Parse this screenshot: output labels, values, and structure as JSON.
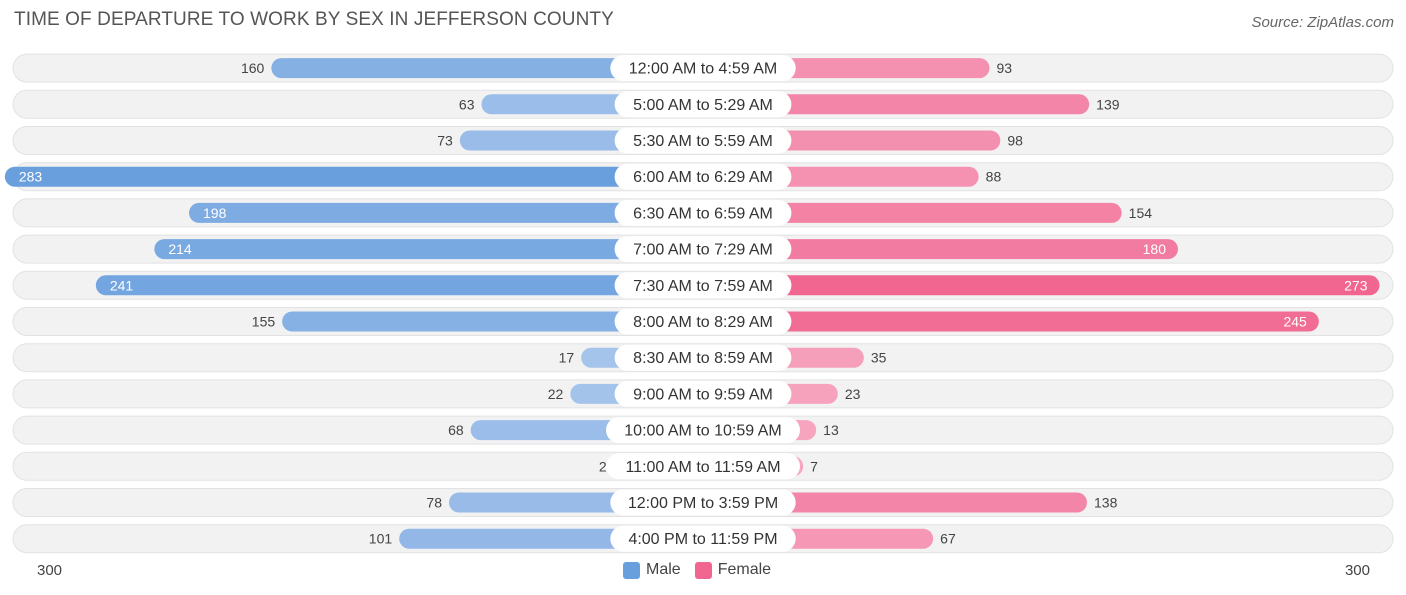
{
  "header": {
    "title": "TIME OF DEPARTURE TO WORK BY SEX IN JEFFERSON COUNTY",
    "source": "Source: ZipAtlas.com"
  },
  "axis": {
    "left_label": "300",
    "right_label": "300"
  },
  "legend": {
    "male_label": "Male",
    "female_label": "Female"
  },
  "colors": {
    "male_strong": "#6a9fde",
    "male_light": "#a9c6ec",
    "female_strong": "#f06690",
    "female_light": "#f7a7c1",
    "row_bg": "#f2f2f2"
  },
  "chart_data": {
    "type": "bar",
    "orientation": "horizontal-diverging",
    "title": "TIME OF DEPARTURE TO WORK BY SEX IN JEFFERSON COUNTY",
    "categories": [
      "12:00 AM to 4:59 AM",
      "5:00 AM to 5:29 AM",
      "5:30 AM to 5:59 AM",
      "6:00 AM to 6:29 AM",
      "6:30 AM to 6:59 AM",
      "7:00 AM to 7:29 AM",
      "7:30 AM to 7:59 AM",
      "8:00 AM to 8:29 AM",
      "8:30 AM to 8:59 AM",
      "9:00 AM to 9:59 AM",
      "10:00 AM to 10:59 AM",
      "11:00 AM to 11:59 AM",
      "12:00 PM to 3:59 PM",
      "4:00 PM to 11:59 PM"
    ],
    "series": [
      {
        "name": "Male",
        "values": [
          160,
          63,
          73,
          283,
          198,
          214,
          241,
          155,
          17,
          22,
          68,
          2,
          78,
          101
        ]
      },
      {
        "name": "Female",
        "values": [
          93,
          139,
          98,
          88,
          154,
          180,
          273,
          245,
          35,
          23,
          13,
          7,
          138,
          67
        ]
      }
    ],
    "xlim": [
      -300,
      300
    ],
    "legend_position": "bottom-center",
    "grid": false
  }
}
